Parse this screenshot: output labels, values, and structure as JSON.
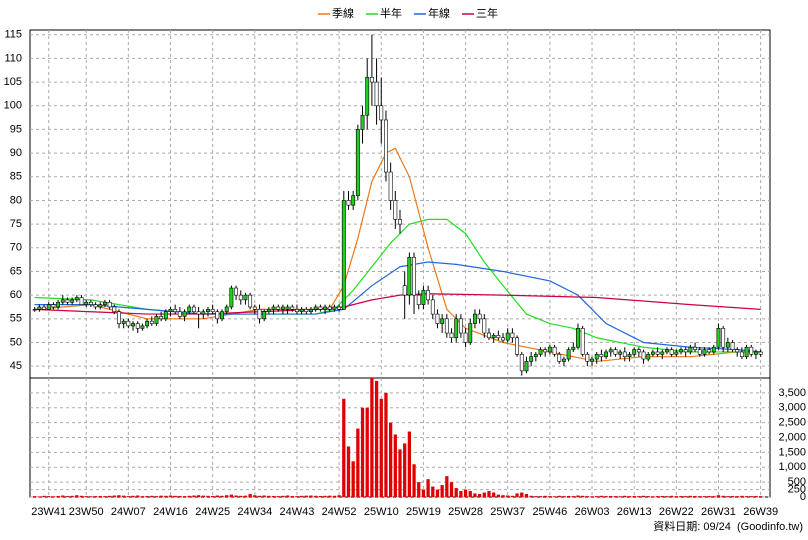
{
  "chart_data": {
    "type": "candlestick",
    "legend": [
      "季線",
      "半年",
      "年線",
      "三年"
    ],
    "source": "資料日期: 09/24  (Goodinfo.tw)",
    "up_color": "#22cc22",
    "down_color": "#ffffff",
    "volume_color": "#e00000",
    "grid": true,
    "xlim": [
      -1,
      157
    ],
    "xticks": [
      {
        "value": 3,
        "label": "23W41"
      },
      {
        "value": 11,
        "label": "23W50"
      },
      {
        "value": 20,
        "label": "24W07"
      },
      {
        "value": 29,
        "label": "24W16"
      },
      {
        "value": 38,
        "label": "24W25"
      },
      {
        "value": 47,
        "label": "24W34"
      },
      {
        "value": 56,
        "label": "24W43"
      },
      {
        "value": 65,
        "label": "24W52"
      },
      {
        "value": 74,
        "label": "25W10"
      },
      {
        "value": 83,
        "label": "25W19"
      },
      {
        "value": 92,
        "label": "25W28"
      },
      {
        "value": 101,
        "label": "25W37"
      },
      {
        "value": 110,
        "label": "25W46"
      },
      {
        "value": 119,
        "label": "26W03"
      },
      {
        "value": 128,
        "label": "26W13"
      },
      {
        "value": 137,
        "label": "26W22"
      },
      {
        "value": 146,
        "label": "26W31"
      },
      {
        "value": 155,
        "label": "26W39"
      }
    ],
    "ylim": [
      42.5,
      116
    ],
    "yticks": [
      45,
      50,
      55,
      60,
      65,
      70,
      75,
      80,
      85,
      90,
      95,
      100,
      105,
      110,
      115
    ],
    "y2lim": [
      0,
      4000
    ],
    "y2ticks": [
      0,
      250,
      500,
      {
        "value": 1000,
        "label": "1,000"
      },
      {
        "value": 1500,
        "label": "1,500"
      },
      {
        "value": 2000,
        "label": "2,000"
      },
      {
        "value": 2500,
        "label": "2,500"
      },
      {
        "value": 3000,
        "label": "3,000"
      },
      {
        "value": 3500,
        "label": "3,500"
      }
    ],
    "candles": [
      [
        57,
        57.5,
        56.5,
        57
      ],
      [
        57,
        58,
        56.5,
        57.5
      ],
      [
        57.5,
        58,
        57,
        57
      ],
      [
        57,
        58.5,
        57,
        58
      ],
      [
        58,
        58.5,
        57,
        57.5
      ],
      [
        57.5,
        59,
        57,
        58.5
      ],
      [
        58.5,
        60,
        58,
        59
      ],
      [
        59,
        59.5,
        58,
        58.5
      ],
      [
        58.5,
        59.5,
        58,
        59
      ],
      [
        59,
        60,
        58.5,
        59.5
      ],
      [
        59.5,
        60,
        58,
        58
      ],
      [
        58,
        59,
        57.5,
        58.5
      ],
      [
        58.5,
        59,
        57.5,
        58
      ],
      [
        58,
        58.5,
        57,
        57.5
      ],
      [
        57.5,
        58.5,
        57,
        58
      ],
      [
        58,
        59,
        57.5,
        58.5
      ],
      [
        58.5,
        59,
        57,
        57.5
      ],
      [
        57.5,
        58,
        56,
        56.5
      ],
      [
        56.5,
        57,
        53,
        54
      ],
      [
        54,
        55,
        53,
        54.5
      ],
      [
        54.5,
        55,
        53,
        53.5
      ],
      [
        53.5,
        54.5,
        52.5,
        54
      ],
      [
        54,
        54.5,
        52,
        53
      ],
      [
        53,
        54,
        52.5,
        53.5
      ],
      [
        53.5,
        55,
        53,
        54.5
      ],
      [
        54.5,
        55.5,
        53.5,
        54
      ],
      [
        54,
        56,
        53.5,
        55.5
      ],
      [
        55.5,
        56.5,
        54.5,
        55
      ],
      [
        55,
        57,
        54.5,
        56.5
      ],
      [
        56.5,
        57.5,
        55.5,
        57
      ],
      [
        57,
        58,
        56,
        56.5
      ],
      [
        56.5,
        57.5,
        55,
        55.5
      ],
      [
        55.5,
        57,
        54.5,
        56.5
      ],
      [
        56.5,
        58,
        56,
        57.5
      ],
      [
        57.5,
        58,
        56,
        56.5
      ],
      [
        56.5,
        57.5,
        53,
        56
      ],
      [
        56,
        57,
        55,
        56.5
      ],
      [
        56.5,
        57.5,
        55.5,
        57
      ],
      [
        57,
        58,
        56,
        56.5
      ],
      [
        56.5,
        57,
        54,
        55
      ],
      [
        55,
        57,
        54.5,
        56.5
      ],
      [
        56.5,
        58,
        56,
        57.5
      ],
      [
        57.5,
        62,
        57,
        61.5
      ],
      [
        61.5,
        62,
        59,
        60
      ],
      [
        60,
        61,
        58,
        59
      ],
      [
        59,
        60.5,
        58,
        60
      ],
      [
        60,
        60.5,
        57,
        57.5
      ],
      [
        57.5,
        58,
        56,
        57
      ],
      [
        57,
        58,
        54,
        55
      ],
      [
        55,
        57,
        54.5,
        56.5
      ],
      [
        56.5,
        57.5,
        56,
        57
      ],
      [
        57,
        58,
        56,
        57.5
      ],
      [
        57.5,
        58,
        56.5,
        57
      ],
      [
        57,
        58,
        56,
        57.5
      ],
      [
        57,
        58,
        56,
        57.5
      ],
      [
        57.5,
        58,
        56.5,
        57
      ],
      [
        57,
        58,
        56,
        56.5
      ],
      [
        56.5,
        57.5,
        56,
        57
      ],
      [
        57,
        57.5,
        56,
        56.5
      ],
      [
        56.5,
        57.5,
        56,
        57
      ],
      [
        57,
        58,
        56.5,
        57.5
      ],
      [
        57.5,
        58,
        56.5,
        57
      ],
      [
        57,
        58,
        56,
        57.5
      ],
      [
        57.5,
        58,
        56.5,
        57
      ],
      [
        57,
        58,
        56.5,
        57.5
      ],
      [
        57.5,
        58,
        56.5,
        57
      ],
      [
        57,
        82,
        57,
        80
      ],
      [
        80,
        82,
        78,
        79
      ],
      [
        79,
        82,
        78,
        81
      ],
      [
        81,
        96,
        80,
        95
      ],
      [
        95,
        100,
        92,
        98
      ],
      [
        98,
        110,
        95,
        106
      ],
      [
        106,
        115,
        100,
        105
      ],
      [
        105,
        110,
        96,
        100
      ],
      [
        100,
        106,
        92,
        97
      ],
      [
        97,
        99,
        84,
        86
      ],
      [
        86,
        88,
        78,
        80
      ],
      [
        80,
        82,
        74,
        76
      ],
      [
        76,
        78,
        73,
        75
      ],
      [
        62,
        65,
        55,
        60
      ],
      [
        60,
        69,
        58,
        68
      ],
      [
        68,
        69,
        56,
        60
      ],
      [
        60,
        61,
        57,
        58
      ],
      [
        58,
        62,
        57,
        61
      ],
      [
        61,
        62,
        58,
        59
      ],
      [
        59,
        60,
        55,
        56
      ],
      [
        56,
        57,
        53,
        54
      ],
      [
        54,
        56,
        52,
        55
      ],
      [
        55,
        56,
        51,
        52
      ],
      [
        52,
        53,
        50,
        51
      ],
      [
        51,
        56,
        50,
        55
      ],
      [
        55,
        56,
        51,
        52
      ],
      [
        52,
        53,
        49,
        50
      ],
      [
        50,
        55,
        49.5,
        54
      ],
      [
        54,
        57,
        53,
        56
      ],
      [
        56,
        57,
        54,
        55
      ],
      [
        55,
        56,
        51,
        52
      ],
      [
        52,
        53,
        50.5,
        51
      ],
      [
        51,
        52,
        50,
        51.5
      ],
      [
        51.5,
        52.5,
        50.5,
        51
      ],
      [
        51,
        52,
        50,
        50.5
      ],
      [
        50.5,
        53,
        50,
        52
      ],
      [
        52,
        53,
        50,
        51
      ],
      [
        51,
        51.5,
        47,
        47.5
      ],
      [
        47.5,
        48,
        43,
        44
      ],
      [
        44,
        47,
        43.5,
        46
      ],
      [
        46,
        48,
        45,
        47
      ],
      [
        47,
        48,
        46,
        47.5
      ],
      [
        47.5,
        49,
        47,
        48.5
      ],
      [
        48.5,
        49,
        47,
        48
      ],
      [
        48,
        49.5,
        47.5,
        49
      ],
      [
        49,
        49.5,
        47,
        47.5
      ],
      [
        47.5,
        48,
        45.5,
        46
      ],
      [
        46,
        47,
        45,
        46.5
      ],
      [
        46.5,
        49,
        46,
        48.5
      ],
      [
        48.5,
        50,
        48,
        49
      ],
      [
        49,
        54,
        48.5,
        53
      ],
      [
        53,
        53.5,
        47,
        47.5
      ],
      [
        47.5,
        48,
        45,
        46
      ],
      [
        46,
        47,
        45,
        46.5
      ],
      [
        46.5,
        48,
        45.5,
        47.5
      ],
      [
        47.5,
        48.5,
        46,
        47
      ],
      [
        47,
        48.5,
        46.5,
        48
      ],
      [
        48,
        49,
        47,
        48.5
      ],
      [
        48.5,
        49,
        47,
        47.5
      ],
      [
        47.5,
        48.5,
        46.5,
        48
      ],
      [
        48,
        49,
        46,
        47
      ],
      [
        47,
        48,
        46,
        47.5
      ],
      [
        47.5,
        49,
        47,
        48.5
      ],
      [
        48.5,
        49,
        47,
        48
      ],
      [
        48,
        48.5,
        45.5,
        46.5
      ],
      [
        46.5,
        48,
        46,
        47.5
      ],
      [
        47.5,
        48.5,
        47,
        48
      ],
      [
        48,
        49,
        47,
        47.5
      ],
      [
        47.5,
        48.5,
        46.5,
        48
      ],
      [
        48,
        49,
        47.5,
        48.5
      ],
      [
        48.5,
        49,
        47,
        47.5
      ],
      [
        47.5,
        48.5,
        47,
        48
      ],
      [
        48,
        49,
        47.5,
        48.5
      ],
      [
        48.5,
        49,
        47,
        48
      ],
      [
        48,
        49.5,
        47.5,
        49
      ],
      [
        49,
        50,
        48,
        48.5
      ],
      [
        48.5,
        49,
        47,
        47.5
      ],
      [
        47.5,
        49,
        47,
        48.5
      ],
      [
        48.5,
        49,
        47.5,
        48
      ],
      [
        48,
        49.5,
        47.5,
        49
      ],
      [
        49,
        54,
        48.5,
        53
      ],
      [
        53,
        53.5,
        48,
        49
      ],
      [
        49,
        51,
        48,
        50
      ],
      [
        50,
        50.5,
        48,
        48.5
      ],
      [
        48.5,
        49,
        47,
        48
      ],
      [
        48,
        49,
        46.5,
        47
      ],
      [
        47,
        49.5,
        46.5,
        49
      ],
      [
        49,
        49.5,
        47,
        47.5
      ],
      [
        47.5,
        48.5,
        46.5,
        48
      ],
      [
        48,
        48.5,
        47,
        47.5
      ]
    ],
    "volume": [
      30,
      20,
      40,
      30,
      25,
      35,
      50,
      30,
      40,
      60,
      40,
      30,
      25,
      30,
      35,
      30,
      40,
      50,
      60,
      45,
      30,
      40,
      50,
      30,
      35,
      40,
      30,
      45,
      40,
      50,
      40,
      35,
      30,
      40,
      50,
      60,
      45,
      40,
      35,
      50,
      40,
      60,
      80,
      50,
      40,
      45,
      100,
      60,
      40,
      50,
      40,
      35,
      30,
      40,
      50,
      35,
      30,
      40,
      45,
      50,
      40,
      35,
      40,
      45,
      40,
      60,
      3300,
      1700,
      1200,
      2300,
      3000,
      3000,
      4000,
      3900,
      3300,
      3500,
      2500,
      2100,
      1600,
      1800,
      2200,
      1100,
      500,
      250,
      600,
      350,
      250,
      400,
      700,
      500,
      300,
      200,
      250,
      200,
      120,
      100,
      150,
      200,
      150,
      80,
      60,
      50,
      40,
      120,
      150,
      100,
      40,
      30,
      30,
      40,
      30,
      25,
      40,
      30,
      35,
      30,
      50,
      40,
      30,
      25,
      30,
      40,
      30,
      35,
      30,
      25,
      40,
      30,
      35,
      30,
      40,
      30,
      25,
      30,
      35,
      30,
      40,
      30,
      35,
      30,
      40,
      35,
      30,
      30,
      35,
      30,
      60,
      40,
      30,
      35,
      30,
      40,
      30,
      30,
      35,
      30
    ],
    "series": [
      {
        "name": "季線",
        "color": "#f07818",
        "x": [
          0,
          12,
          24,
          36,
          48,
          60,
          63,
          66,
          69,
          72,
          75,
          77,
          80,
          84,
          88,
          92,
          100,
          110,
          120,
          130,
          140,
          150,
          155
        ],
        "values": [
          57,
          58,
          55,
          55,
          57,
          57,
          57,
          62,
          72,
          84,
          90,
          91,
          85,
          70,
          57,
          53,
          50,
          48,
          46,
          47,
          47,
          48,
          48
        ]
      },
      {
        "name": "半年",
        "color": "#22dd22",
        "x": [
          0,
          12,
          24,
          36,
          48,
          60,
          64,
          68,
          72,
          76,
          80,
          84,
          88,
          92,
          96,
          100,
          105,
          110,
          115,
          120,
          130,
          140,
          150,
          155
        ],
        "values": [
          59.5,
          59,
          57,
          56,
          56,
          56,
          57,
          61,
          66,
          71,
          75,
          76,
          76,
          73,
          67,
          62,
          56,
          54,
          53,
          51,
          49,
          48,
          48,
          48
        ]
      },
      {
        "name": "年線",
        "color": "#2266dd",
        "x": [
          0,
          12,
          24,
          36,
          48,
          60,
          66,
          72,
          78,
          84,
          90,
          100,
          110,
          116,
          122,
          130,
          140,
          150,
          155
        ],
        "values": [
          58,
          58,
          57,
          56,
          56,
          56,
          57,
          62,
          66,
          67,
          66.5,
          65,
          63,
          60,
          54,
          50,
          49,
          48.5,
          48
        ]
      },
      {
        "name": "三年",
        "color": "#cc0044",
        "x": [
          0,
          12,
          24,
          36,
          48,
          60,
          66,
          72,
          78,
          84,
          100,
          120,
          140,
          155
        ],
        "values": [
          57,
          56.5,
          56,
          56,
          56.5,
          57,
          57.5,
          59,
          60,
          60.3,
          60,
          59.5,
          58,
          57
        ]
      }
    ]
  }
}
